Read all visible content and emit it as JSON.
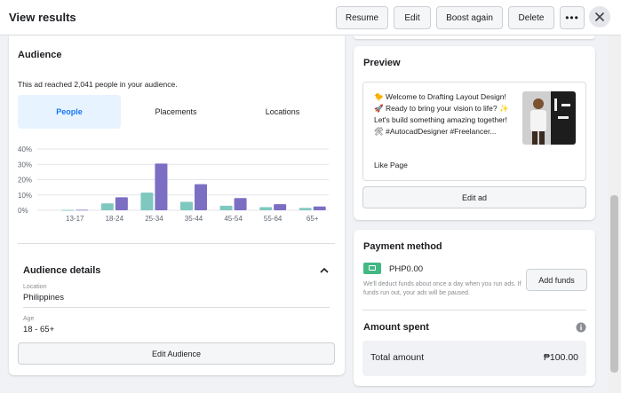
{
  "header": {
    "title": "View results",
    "buttons": {
      "resume": "Resume",
      "edit": "Edit",
      "boost_again": "Boost again",
      "delete": "Delete"
    },
    "more_icon": "more-horizontal-icon",
    "close_icon": "close-icon"
  },
  "audience": {
    "title": "Audience",
    "reach_text": "This ad reached 2,041 people in your audience.",
    "tabs": [
      "People",
      "Placements",
      "Locations"
    ],
    "active_tab": "People",
    "colors": {
      "series_a": "#7fc8c0",
      "series_b": "#7b6fc4"
    }
  },
  "chart_data": {
    "type": "bar",
    "categories": [
      "13-17",
      "18-24",
      "25-34",
      "35-44",
      "45-54",
      "55-64",
      "65+"
    ],
    "series": [
      {
        "values": [
          0.2,
          4.5,
          11.5,
          5.5,
          3,
          2,
          1.5
        ]
      },
      {
        "values": [
          0.3,
          8.5,
          30.5,
          17,
          8,
          4,
          2.5
        ]
      }
    ],
    "yticks": [
      "0%",
      "10%",
      "20%",
      "30%",
      "40%"
    ],
    "ylim": [
      0,
      40
    ],
    "grid": true
  },
  "audience_details": {
    "title": "Audience details",
    "location_label": "Location",
    "location_value": "Philippines",
    "age_label": "Age",
    "age_value": "18 - 65+",
    "edit_button": "Edit Audience"
  },
  "preview": {
    "title": "Preview",
    "ad_text": "🐤 Welcome to Drafting Layout Design! 🚀 Ready to bring your vision to life? ✨ Let's build something amazing together! 🛠 #AutocadDesigner #Freelancer...",
    "like_page": "Like Page",
    "edit_ad": "Edit ad"
  },
  "payment": {
    "title": "Payment method",
    "balance": "PHP0.00",
    "note": "We'll deduct funds about once a day when you run ads. If funds run out, your ads will be paused.",
    "add_funds": "Add funds"
  },
  "amount_spent": {
    "title": "Amount spent",
    "total_label": "Total amount",
    "total_value": "₱100.00"
  }
}
